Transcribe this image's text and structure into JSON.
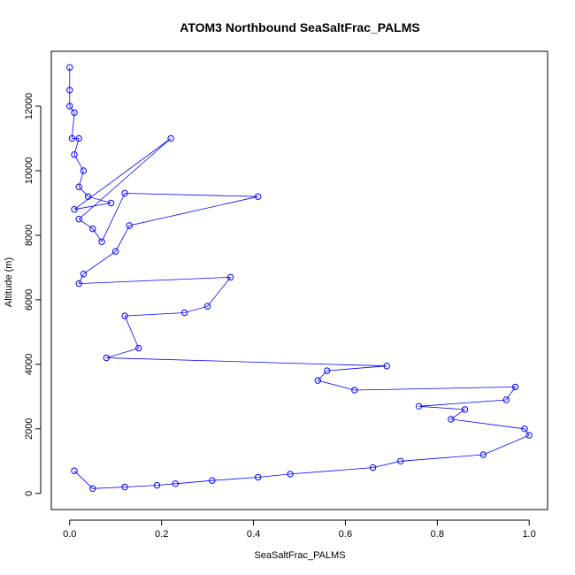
{
  "chart_data": {
    "type": "scatter",
    "title": "ATOM3 Northbound SeaSaltFrac_PALMS",
    "xlabel": "SeaSaltFrac_PALMS",
    "ylabel": "Altitude (m)",
    "xlim": [
      -0.04,
      1.04
    ],
    "ylim": [
      -500,
      13700
    ],
    "x_ticks": [
      0.0,
      0.2,
      0.4,
      0.6,
      0.8,
      1.0
    ],
    "x_tick_labels": [
      "0.0",
      "0.2",
      "0.4",
      "0.6",
      "0.8",
      "1.0"
    ],
    "y_ticks": [
      0,
      2000,
      4000,
      6000,
      8000,
      10000,
      12000
    ],
    "y_tick_labels": [
      "0",
      "2000",
      "4000",
      "6000",
      "8000",
      "10000",
      "12000"
    ],
    "grid": false,
    "legend": "none",
    "marker": "open-circle",
    "connected_by_lines": true,
    "series_color": "#0000ff",
    "series": [
      {
        "values_description_omitted": true,
        "x": [
          0.0,
          0.0,
          0.0,
          0.01,
          0.005,
          0.02,
          0.01,
          0.03,
          0.02,
          0.04,
          0.09,
          0.01,
          0.22,
          0.02,
          0.05,
          0.07,
          0.12,
          0.41,
          0.13,
          0.1,
          0.03,
          0.02,
          0.35,
          0.3,
          0.25,
          0.12,
          0.15,
          0.08,
          0.69,
          0.56,
          0.54,
          0.62,
          0.97,
          0.95,
          0.76,
          0.86,
          0.83,
          0.99,
          1.0,
          0.9,
          0.72,
          0.66,
          0.48,
          0.41,
          0.31,
          0.23,
          0.19,
          0.12,
          0.05,
          0.01
        ],
        "y": [
          13200,
          12500,
          12000,
          11800,
          11000,
          11000,
          10500,
          10000,
          9500,
          9200,
          9000,
          8800,
          11000,
          8500,
          8200,
          7800,
          9300,
          9200,
          8300,
          7500,
          6800,
          6500,
          6700,
          5800,
          5600,
          5500,
          4500,
          4200,
          3950,
          3800,
          3500,
          3200,
          3300,
          2900,
          2700,
          2600,
          2300,
          2000,
          1800,
          1200,
          1000,
          800,
          600,
          500,
          400,
          300,
          250,
          200,
          150,
          700
        ]
      }
    ]
  }
}
